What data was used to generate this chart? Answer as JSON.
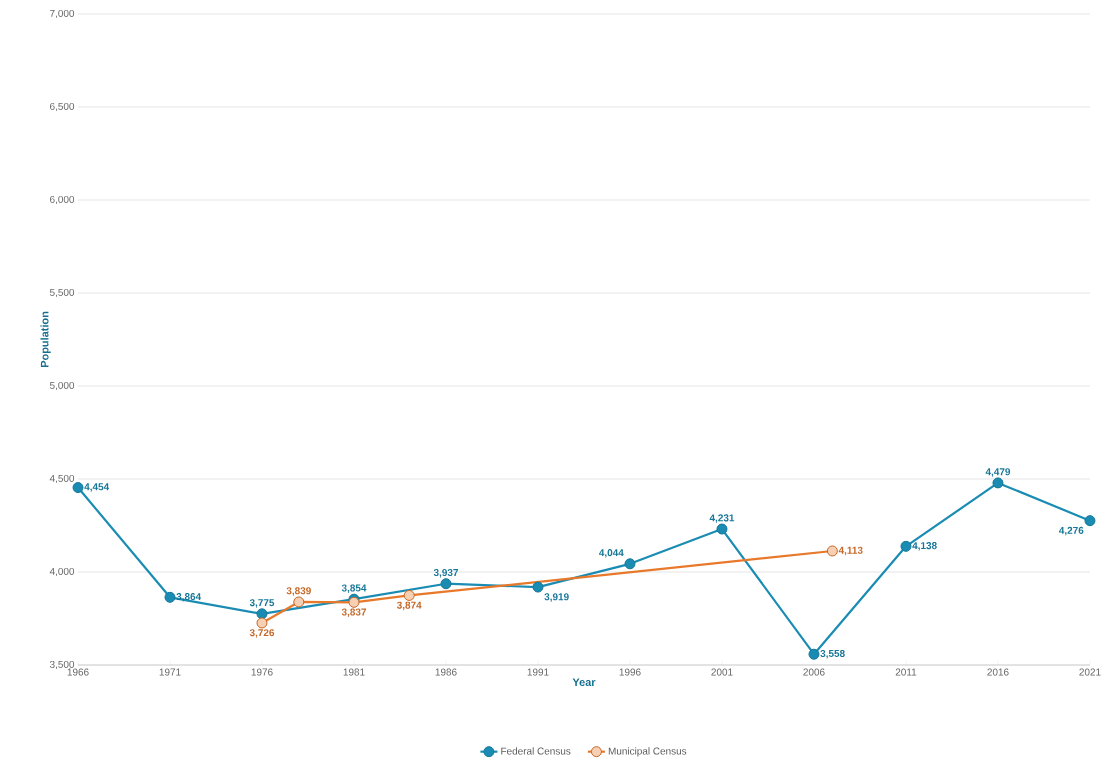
{
  "chart_data": {
    "type": "line",
    "xlabel": "Year",
    "ylabel": "Population",
    "xlim": [
      1966,
      2021
    ],
    "xticks": [
      1966,
      1971,
      1976,
      1981,
      1986,
      1991,
      1996,
      2001,
      2006,
      2011,
      2016,
      2021
    ],
    "ylim": [
      3500,
      7000
    ],
    "yticks": [
      {
        "value": 3500,
        "label": "3,500"
      },
      {
        "value": 4000,
        "label": "4,000"
      },
      {
        "value": 4500,
        "label": "4,500"
      },
      {
        "value": 5000,
        "label": "5,000"
      },
      {
        "value": 5500,
        "label": "5,500"
      },
      {
        "value": 6000,
        "label": "6,000"
      },
      {
        "value": 6500,
        "label": "6,500"
      },
      {
        "value": 7000,
        "label": "7,000"
      }
    ],
    "grid": "y",
    "legend": "bottom",
    "marker": "circle",
    "line_style": "solid",
    "series": [
      {
        "name": "Federal Census",
        "color": "#1a8cb3",
        "x": [
          1966,
          1971,
          1976,
          1981,
          1986,
          1991,
          1996,
          2001,
          2006,
          2011,
          2016,
          2021
        ],
        "values": [
          4454,
          3864,
          3775,
          3854,
          3937,
          3919,
          4044,
          4231,
          3558,
          4138,
          4479,
          4276
        ],
        "value_labels": [
          "4,454",
          "3,864",
          "3,775",
          "3,854",
          "3,937",
          "3,919",
          "4,044",
          "4,231",
          "3,558",
          "4,138",
          "4,479",
          "4,276"
        ]
      },
      {
        "name": "Municipal Census",
        "color": "#e8782a",
        "x": [
          1976,
          1978,
          1981,
          1984,
          2007
        ],
        "values": [
          3726,
          3839,
          3837,
          3874,
          4113
        ],
        "value_labels": [
          "3,726",
          "3,839",
          "3,837",
          "3,874",
          "4,113"
        ]
      }
    ]
  }
}
